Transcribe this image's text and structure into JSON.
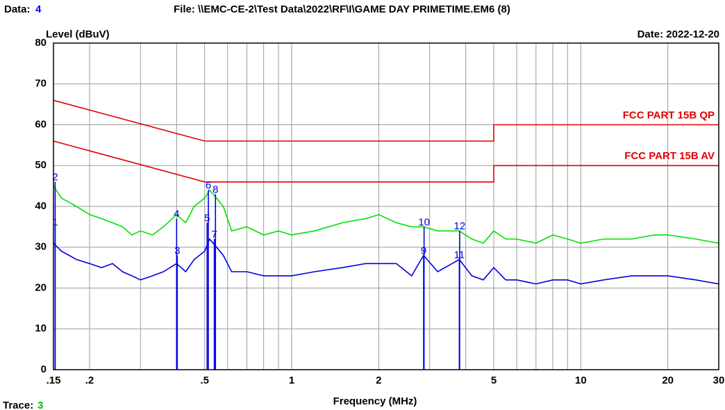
{
  "chart_data": {
    "type": "line",
    "header": {
      "data_label": "Data:",
      "data_value": "4",
      "file": "File: \\\\EMC-CE-2\\Test Data\\2022\\RF\\I\\GAME DAY PRIMETIME.EM6  (8)",
      "date": "Date: 2022-12-20"
    },
    "footer": {
      "trace_label": "Trace:",
      "trace_value": "3"
    },
    "y_label": "Level (dBuV)",
    "x_label": "Frequency (MHz)",
    "log_x": true,
    "grid": true,
    "xlim": [
      0.15,
      30
    ],
    "ylim": [
      0,
      80
    ],
    "yticks": [
      0,
      10,
      20,
      30,
      40,
      50,
      60,
      70,
      80
    ],
    "xticks": [
      {
        "value": 0.15,
        "label": ".15"
      },
      {
        "value": 0.2,
        "label": ".2"
      },
      {
        "value": 0.5,
        "label": ".5"
      },
      1,
      2,
      5,
      10,
      20,
      30
    ],
    "xgrid_minor": [
      0.3,
      0.4,
      0.6,
      0.7,
      0.8,
      0.9,
      3,
      4,
      6,
      7,
      8,
      9
    ],
    "series": [
      {
        "name": "FCC PART 15B QP",
        "color": "#e00000",
        "x": [
          0.15,
          0.5,
          5,
          5,
          30
        ],
        "values": [
          66,
          56,
          56,
          60,
          60
        ]
      },
      {
        "name": "FCC PART 15B AV",
        "color": "#e00000",
        "x": [
          0.15,
          0.5,
          5,
          5,
          30
        ],
        "values": [
          56,
          46,
          46,
          50,
          50
        ]
      },
      {
        "color": "#00e000",
        "x": [
          0.15,
          0.16,
          0.17,
          0.18,
          0.2,
          0.22,
          0.24,
          0.26,
          0.28,
          0.3,
          0.33,
          0.36,
          0.4,
          0.43,
          0.46,
          0.5,
          0.52,
          0.55,
          0.58,
          0.62,
          0.7,
          0.8,
          0.9,
          1,
          1.2,
          1.5,
          1.8,
          2,
          2.3,
          2.6,
          2.86,
          3.2,
          3.8,
          4.2,
          4.6,
          5,
          5.5,
          6,
          7,
          8,
          9,
          10,
          12,
          15,
          18,
          20,
          25,
          30
        ],
        "values": [
          45,
          42,
          41,
          40,
          38,
          37,
          36,
          35,
          33,
          34,
          33,
          35,
          38,
          36,
          40,
          42,
          44,
          42,
          40,
          34,
          35,
          33,
          34,
          33,
          34,
          36,
          37,
          38,
          36,
          35,
          35,
          34,
          34,
          32,
          31,
          34,
          32,
          32,
          31,
          33,
          32,
          31,
          32,
          32,
          33,
          33,
          32,
          31
        ]
      },
      {
        "color": "#0000e0",
        "x": [
          0.15,
          0.16,
          0.17,
          0.18,
          0.2,
          0.22,
          0.24,
          0.26,
          0.28,
          0.3,
          0.33,
          0.36,
          0.4,
          0.43,
          0.46,
          0.5,
          0.52,
          0.55,
          0.58,
          0.62,
          0.7,
          0.8,
          0.9,
          1,
          1.2,
          1.5,
          1.8,
          2,
          2.3,
          2.6,
          2.86,
          3.2,
          3.8,
          4.2,
          4.6,
          5,
          5.5,
          6,
          7,
          8,
          9,
          10,
          12,
          15,
          18,
          20,
          25,
          30
        ],
        "values": [
          31,
          29,
          28,
          27,
          26,
          25,
          26,
          24,
          23,
          22,
          23,
          24,
          26,
          24,
          27,
          29,
          32,
          30,
          28,
          24,
          24,
          23,
          23,
          23,
          24,
          25,
          26,
          26,
          26,
          23,
          28,
          24,
          27,
          23,
          22,
          25,
          22,
          22,
          21,
          22,
          22,
          21,
          22,
          23,
          23,
          23,
          22,
          21
        ]
      }
    ],
    "marker_color": "#0000e0",
    "markers": [
      {
        "label": "1",
        "x": 0.152,
        "value": 35
      },
      {
        "label": "2",
        "x": 0.152,
        "value": 46
      },
      {
        "label": "3",
        "x": 0.402,
        "value": 28
      },
      {
        "label": "4",
        "x": 0.4,
        "value": 37
      },
      {
        "label": "5",
        "x": 0.51,
        "value": 36
      },
      {
        "label": "6",
        "x": 0.515,
        "value": 44
      },
      {
        "label": "7",
        "x": 0.54,
        "value": 32
      },
      {
        "label": "8",
        "x": 0.545,
        "value": 43
      },
      {
        "label": "9",
        "x": 2.86,
        "value": 28
      },
      {
        "label": "10",
        "x": 2.87,
        "value": 35
      },
      {
        "label": "11",
        "x": 3.8,
        "value": 27
      },
      {
        "label": "12",
        "x": 3.81,
        "value": 34
      }
    ]
  }
}
